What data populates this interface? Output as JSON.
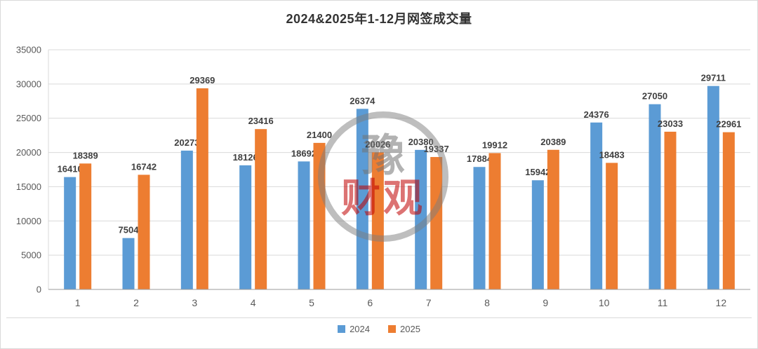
{
  "title": "2024&2025年1-12月网签成交量",
  "watermark": {
    "line1": "豫",
    "line2": "财观"
  },
  "chart_data": {
    "type": "bar",
    "title": "2024&2025年1-12月网签成交量",
    "categories": [
      "1",
      "2",
      "3",
      "4",
      "5",
      "6",
      "7",
      "8",
      "9",
      "10",
      "11",
      "12"
    ],
    "series": [
      {
        "name": "2024",
        "color": "#5B9BD5",
        "values": [
          16410,
          7504,
          20273,
          18126,
          18692,
          26374,
          20380,
          17884,
          15942,
          24376,
          27050,
          29711
        ]
      },
      {
        "name": "2025",
        "color": "#ED7D31",
        "values": [
          18389,
          16742,
          29369,
          23416,
          21400,
          20026,
          19337,
          19912,
          20389,
          18483,
          23033,
          22961
        ]
      }
    ],
    "xlabel": "",
    "ylabel": "",
    "ylim": [
      0,
      35000
    ],
    "ytick_step": 5000,
    "grid": true,
    "legend_position": "bottom",
    "colors": {
      "grid": "#d9d9d9",
      "axis": "#9b9b9b",
      "tick_text": "#595959",
      "value_label": "#3f3f3f"
    }
  }
}
